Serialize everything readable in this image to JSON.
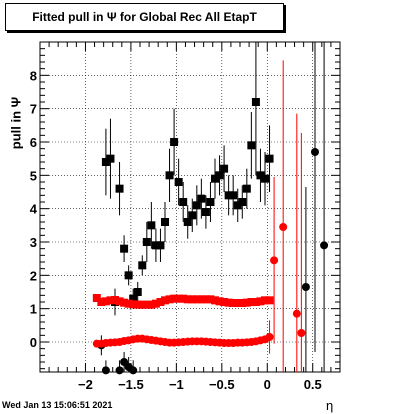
{
  "chart_data": {
    "type": "scatter",
    "title": "Fitted pull in  Ψ  for Global Rec All EtapT",
    "xlabel": "η",
    "ylabel": "pull in  Ψ",
    "xlim": [
      -2.5,
      0.8
    ],
    "ylim": [
      -0.9,
      9.0
    ],
    "grid": true,
    "xticks": [
      -2,
      -1.5,
      -1,
      -0.5,
      0,
      0.5
    ],
    "xtick_labels": [
      "−2",
      "−1.5",
      "−1",
      "−0.5",
      "0",
      "0.5"
    ],
    "yticks": [
      0,
      1,
      2,
      3,
      4,
      5,
      6,
      7,
      8
    ],
    "ytick_labels": [
      "0",
      "1",
      "2",
      "3",
      "4",
      "5",
      "6",
      "7",
      "8"
    ],
    "series": [
      {
        "marker": "square",
        "color": "#000000",
        "points": [
          {
            "x": -1.775,
            "y": 5.4,
            "err": 1.0
          },
          {
            "x": -1.725,
            "y": 5.5,
            "err": 1.2
          },
          {
            "x": -1.675,
            "y": 1.2,
            "err": 0.4
          },
          {
            "x": -1.625,
            "y": 4.6,
            "err": 0.8
          },
          {
            "x": -1.575,
            "y": 2.8,
            "err": 0.4
          },
          {
            "x": -1.525,
            "y": 2.0,
            "err": 0.3
          },
          {
            "x": -1.475,
            "y": 1.3,
            "err": 0.3
          },
          {
            "x": -1.425,
            "y": 1.5,
            "err": 0.3
          },
          {
            "x": -1.375,
            "y": 2.3,
            "err": 0.3
          },
          {
            "x": -1.325,
            "y": 3.0,
            "err": 0.6
          },
          {
            "x": -1.275,
            "y": 3.5,
            "err": 0.7
          },
          {
            "x": -1.225,
            "y": 2.9,
            "err": 0.5
          },
          {
            "x": -1.175,
            "y": 2.9,
            "err": 0.5
          },
          {
            "x": -1.125,
            "y": 3.6,
            "err": 0.6
          },
          {
            "x": -1.075,
            "y": 5.0,
            "err": 0.8
          },
          {
            "x": -1.025,
            "y": 6.0,
            "err": 1.0
          },
          {
            "x": -0.975,
            "y": 4.8,
            "err": 0.7
          },
          {
            "x": -0.925,
            "y": 4.2,
            "err": 0.6
          },
          {
            "x": -0.875,
            "y": 3.6,
            "err": 0.5
          },
          {
            "x": -0.825,
            "y": 3.8,
            "err": 0.5
          },
          {
            "x": -0.775,
            "y": 4.1,
            "err": 0.6
          },
          {
            "x": -0.725,
            "y": 4.3,
            "err": 0.6
          },
          {
            "x": -0.675,
            "y": 3.9,
            "err": 0.5
          },
          {
            "x": -0.625,
            "y": 4.2,
            "err": 0.6
          },
          {
            "x": -0.575,
            "y": 4.9,
            "err": 0.6
          },
          {
            "x": -0.525,
            "y": 5.0,
            "err": 0.6
          },
          {
            "x": -0.475,
            "y": 5.2,
            "err": 0.7
          },
          {
            "x": -0.425,
            "y": 4.4,
            "err": 0.6
          },
          {
            "x": -0.375,
            "y": 4.4,
            "err": 0.6
          },
          {
            "x": -0.325,
            "y": 4.1,
            "err": 0.5
          },
          {
            "x": -0.275,
            "y": 4.2,
            "err": 0.5
          },
          {
            "x": -0.225,
            "y": 4.6,
            "err": 0.6
          },
          {
            "x": -0.175,
            "y": 5.9,
            "err": 1.0
          },
          {
            "x": -0.125,
            "y": 7.2,
            "err": 2.2
          },
          {
            "x": -0.075,
            "y": 5.0,
            "err": 0.8
          },
          {
            "x": -0.025,
            "y": 4.9,
            "err": 0.8
          },
          {
            "x": 0.025,
            "y": 5.5,
            "err": 1.0
          }
        ]
      },
      {
        "marker": "circle",
        "color": "#000000",
        "points": [
          {
            "x": -1.825,
            "y": -0.1,
            "err": 0.3
          },
          {
            "x": -1.775,
            "y": -0.85,
            "err": 0.3
          },
          {
            "x": -1.625,
            "y": -0.85,
            "err": 0.3
          },
          {
            "x": -1.575,
            "y": -0.6,
            "err": 0.3
          },
          {
            "x": -1.525,
            "y": -0.75,
            "err": 0.3
          },
          {
            "x": -1.475,
            "y": -0.85,
            "err": 0.3
          },
          {
            "x": 0.425,
            "y": 1.65,
            "err": 3.0
          },
          {
            "x": 0.525,
            "y": 5.7,
            "err": 6.0
          },
          {
            "x": 0.625,
            "y": 2.9,
            "err": 6.5
          }
        ]
      },
      {
        "marker": "square",
        "color": "#ff0000",
        "points": [
          {
            "x": -1.875,
            "y": 1.32
          },
          {
            "x": -1.825,
            "y": 1.2
          },
          {
            "x": -1.775,
            "y": 1.22
          },
          {
            "x": -1.725,
            "y": 1.25
          },
          {
            "x": -1.675,
            "y": 1.26
          },
          {
            "x": -1.625,
            "y": 1.22
          },
          {
            "x": -1.575,
            "y": 1.18
          },
          {
            "x": -1.525,
            "y": 1.15
          },
          {
            "x": -1.475,
            "y": 1.13
          },
          {
            "x": -1.425,
            "y": 1.12
          },
          {
            "x": -1.375,
            "y": 1.12
          },
          {
            "x": -1.325,
            "y": 1.12
          },
          {
            "x": -1.275,
            "y": 1.12
          },
          {
            "x": -1.225,
            "y": 1.15
          },
          {
            "x": -1.175,
            "y": 1.2
          },
          {
            "x": -1.125,
            "y": 1.25
          },
          {
            "x": -1.075,
            "y": 1.28
          },
          {
            "x": -1.025,
            "y": 1.3
          },
          {
            "x": -0.975,
            "y": 1.3
          },
          {
            "x": -0.925,
            "y": 1.3
          },
          {
            "x": -0.875,
            "y": 1.28
          },
          {
            "x": -0.825,
            "y": 1.28
          },
          {
            "x": -0.775,
            "y": 1.28
          },
          {
            "x": -0.725,
            "y": 1.28
          },
          {
            "x": -0.675,
            "y": 1.28
          },
          {
            "x": -0.625,
            "y": 1.28
          },
          {
            "x": -0.575,
            "y": 1.25
          },
          {
            "x": -0.525,
            "y": 1.22
          },
          {
            "x": -0.475,
            "y": 1.2
          },
          {
            "x": -0.425,
            "y": 1.18
          },
          {
            "x": -0.375,
            "y": 1.17
          },
          {
            "x": -0.325,
            "y": 1.17
          },
          {
            "x": -0.275,
            "y": 1.17
          },
          {
            "x": -0.225,
            "y": 1.18
          },
          {
            "x": -0.175,
            "y": 1.2
          },
          {
            "x": -0.125,
            "y": 1.2
          },
          {
            "x": -0.075,
            "y": 1.22
          },
          {
            "x": -0.025,
            "y": 1.25
          },
          {
            "x": 0.025,
            "y": 1.25
          }
        ]
      },
      {
        "marker": "circle",
        "color": "#ff0000",
        "points": [
          {
            "x": -1.875,
            "y": -0.05
          },
          {
            "x": -1.825,
            "y": -0.05
          },
          {
            "x": -1.775,
            "y": -0.03
          },
          {
            "x": -1.725,
            "y": -0.02
          },
          {
            "x": -1.675,
            "y": -0.01
          },
          {
            "x": -1.625,
            "y": 0.0
          },
          {
            "x": -1.575,
            "y": 0.03
          },
          {
            "x": -1.525,
            "y": 0.05
          },
          {
            "x": -1.475,
            "y": 0.08
          },
          {
            "x": -1.425,
            "y": 0.1
          },
          {
            "x": -1.375,
            "y": 0.1
          },
          {
            "x": -1.325,
            "y": 0.08
          },
          {
            "x": -1.275,
            "y": 0.06
          },
          {
            "x": -1.225,
            "y": 0.04
          },
          {
            "x": -1.175,
            "y": 0.02
          },
          {
            "x": -1.125,
            "y": 0.0
          },
          {
            "x": -1.075,
            "y": -0.02
          },
          {
            "x": -1.025,
            "y": -0.02
          },
          {
            "x": -0.975,
            "y": -0.01
          },
          {
            "x": -0.925,
            "y": 0.0
          },
          {
            "x": -0.875,
            "y": 0.01
          },
          {
            "x": -0.825,
            "y": 0.02
          },
          {
            "x": -0.775,
            "y": 0.02
          },
          {
            "x": -0.725,
            "y": 0.02
          },
          {
            "x": -0.675,
            "y": 0.01
          },
          {
            "x": -0.625,
            "y": 0.0
          },
          {
            "x": -0.575,
            "y": -0.01
          },
          {
            "x": -0.525,
            "y": -0.02
          },
          {
            "x": -0.475,
            "y": -0.03
          },
          {
            "x": -0.425,
            "y": -0.03
          },
          {
            "x": -0.375,
            "y": -0.03
          },
          {
            "x": -0.325,
            "y": -0.02
          },
          {
            "x": -0.275,
            "y": -0.02
          },
          {
            "x": -0.225,
            "y": -0.01
          },
          {
            "x": -0.175,
            "y": 0.0
          },
          {
            "x": -0.125,
            "y": 0.02
          },
          {
            "x": -0.075,
            "y": 0.05
          },
          {
            "x": -0.025,
            "y": 0.08
          },
          {
            "x": 0.025,
            "y": 0.15,
            "err": 0.5
          },
          {
            "x": 0.075,
            "y": 2.45,
            "err": 2.5
          },
          {
            "x": 0.175,
            "y": 3.45,
            "err": 5.0
          },
          {
            "x": 0.325,
            "y": 0.85,
            "err": 6.0
          },
          {
            "x": 0.375,
            "y": 0.27,
            "err": 6.0
          }
        ]
      }
    ]
  },
  "footer": {
    "timestamp": "Wed Jan 13 15:06:51 2021"
  }
}
